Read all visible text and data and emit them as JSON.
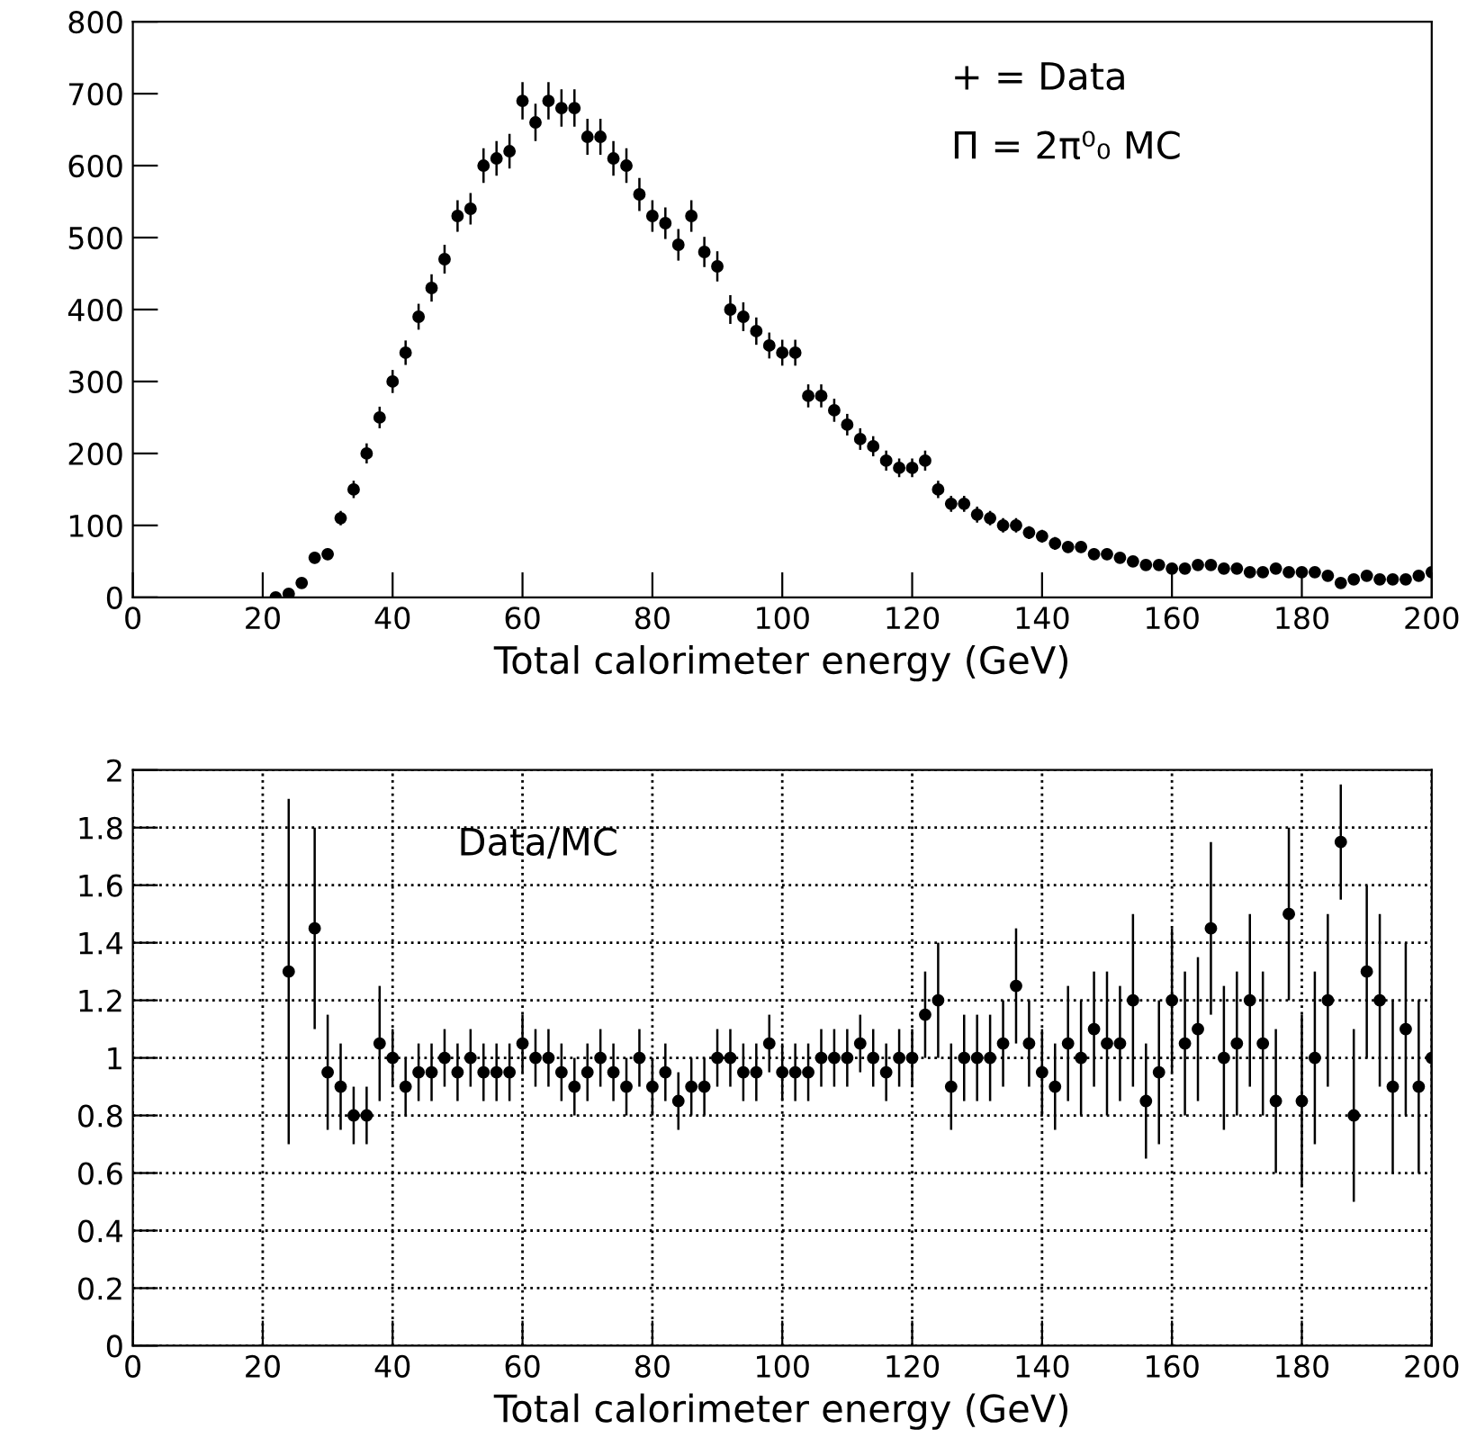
{
  "chart_data": [
    {
      "type": "scatter",
      "xlabel": "Total calorimeter energy (GeV)",
      "annotations": [
        "+ = Data",
        "Π = 2π⁰₀ MC"
      ],
      "marker": "circle",
      "grid": false,
      "color": "#000000",
      "x": [
        22,
        24,
        26,
        28,
        30,
        32,
        34,
        36,
        38,
        40,
        42,
        44,
        46,
        48,
        50,
        52,
        54,
        56,
        58,
        60,
        62,
        64,
        66,
        68,
        70,
        72,
        74,
        76,
        78,
        80,
        82,
        84,
        86,
        88,
        90,
        92,
        94,
        96,
        98,
        100,
        102,
        104,
        106,
        108,
        110,
        112,
        114,
        116,
        118,
        120,
        122,
        124,
        126,
        128,
        130,
        132,
        134,
        136,
        138,
        140,
        142,
        144,
        146,
        148,
        150,
        152,
        154,
        156,
        158,
        160,
        162,
        164,
        166,
        168,
        170,
        172,
        174,
        176,
        178,
        180,
        182,
        184,
        186,
        188,
        190,
        192,
        194,
        196,
        198,
        200
      ],
      "values": [
        0,
        5,
        20,
        55,
        60,
        110,
        150,
        200,
        250,
        300,
        340,
        390,
        430,
        470,
        530,
        540,
        600,
        610,
        620,
        690,
        660,
        690,
        680,
        680,
        640,
        640,
        610,
        600,
        560,
        530,
        520,
        490,
        530,
        480,
        460,
        400,
        390,
        370,
        350,
        340,
        340,
        280,
        280,
        260,
        240,
        220,
        210,
        190,
        180,
        180,
        190,
        150,
        130,
        130,
        115,
        110,
        100,
        100,
        90,
        85,
        75,
        70,
        70,
        60,
        60,
        55,
        50,
        45,
        45,
        40,
        40,
        45,
        45,
        40,
        40,
        35,
        35,
        40,
        35,
        35,
        35,
        30,
        20,
        25,
        30,
        25,
        25,
        25,
        30,
        35
      ],
      "errors": [
        5,
        5,
        5,
        8,
        8,
        10,
        12,
        14,
        15,
        16,
        17,
        18,
        19,
        20,
        22,
        22,
        24,
        24,
        24,
        26,
        26,
        26,
        26,
        26,
        25,
        25,
        24,
        24,
        23,
        22,
        22,
        22,
        22,
        21,
        21,
        20,
        20,
        19,
        18,
        18,
        18,
        16,
        16,
        16,
        15,
        15,
        14,
        14,
        13,
        13,
        14,
        12,
        11,
        11,
        11,
        10,
        10,
        10,
        9,
        9,
        9,
        8,
        8,
        8,
        8,
        7,
        7,
        7,
        7,
        6,
        6,
        7,
        7,
        6,
        6,
        6,
        6,
        6,
        6,
        6,
        6,
        5,
        5,
        5,
        5,
        5,
        5,
        5,
        5,
        6
      ],
      "xlim": [
        0,
        200
      ],
      "xticks": [
        0,
        20,
        40,
        60,
        80,
        100,
        120,
        140,
        160,
        180,
        200
      ],
      "ylim": [
        0,
        800
      ],
      "yticks": [
        0,
        100,
        200,
        300,
        400,
        500,
        600,
        700,
        800
      ]
    },
    {
      "type": "scatter",
      "xlabel": "Total calorimeter energy (GeV)",
      "annotations": [
        "Data/MC"
      ],
      "marker": "circle",
      "grid": true,
      "color": "#000000",
      "x": [
        24,
        28,
        30,
        32,
        34,
        36,
        38,
        40,
        42,
        44,
        46,
        48,
        50,
        52,
        54,
        56,
        58,
        60,
        62,
        64,
        66,
        68,
        70,
        72,
        74,
        76,
        78,
        80,
        82,
        84,
        86,
        88,
        90,
        92,
        94,
        96,
        98,
        100,
        102,
        104,
        106,
        108,
        110,
        112,
        114,
        116,
        118,
        120,
        122,
        124,
        126,
        128,
        130,
        132,
        134,
        136,
        138,
        140,
        142,
        144,
        146,
        148,
        150,
        152,
        154,
        156,
        158,
        160,
        162,
        164,
        166,
        168,
        170,
        172,
        174,
        176,
        178,
        180,
        182,
        184,
        186,
        188,
        190,
        192,
        194,
        196,
        198,
        200
      ],
      "values": [
        1.3,
        1.45,
        0.95,
        0.9,
        0.8,
        0.8,
        1.05,
        1.0,
        0.9,
        0.95,
        0.95,
        1.0,
        0.95,
        1.0,
        0.95,
        0.95,
        0.95,
        1.05,
        1.0,
        1.0,
        0.95,
        0.9,
        0.95,
        1.0,
        0.95,
        0.9,
        1.0,
        0.9,
        0.95,
        0.85,
        0.9,
        0.9,
        1.0,
        1.0,
        0.95,
        0.95,
        1.05,
        0.95,
        0.95,
        0.95,
        1.0,
        1.0,
        1.0,
        1.05,
        1.0,
        0.95,
        1.0,
        1.0,
        1.15,
        1.2,
        0.9,
        1.0,
        1.0,
        1.0,
        1.05,
        1.25,
        1.05,
        0.95,
        0.9,
        1.05,
        1.0,
        1.1,
        1.05,
        1.05,
        1.2,
        0.85,
        0.95,
        1.2,
        1.05,
        1.1,
        1.45,
        1.0,
        1.05,
        1.2,
        1.05,
        0.85,
        1.5,
        0.85,
        1.0,
        1.2,
        1.75,
        0.8,
        1.3,
        1.2,
        0.9,
        1.1,
        0.9,
        1.0
      ],
      "errors": [
        0.6,
        0.35,
        0.2,
        0.15,
        0.1,
        0.1,
        0.2,
        0.1,
        0.1,
        0.1,
        0.1,
        0.1,
        0.1,
        0.1,
        0.1,
        0.1,
        0.1,
        0.1,
        0.1,
        0.1,
        0.1,
        0.1,
        0.1,
        0.1,
        0.1,
        0.1,
        0.1,
        0.1,
        0.1,
        0.1,
        0.1,
        0.1,
        0.1,
        0.1,
        0.1,
        0.1,
        0.1,
        0.1,
        0.1,
        0.1,
        0.1,
        0.1,
        0.1,
        0.1,
        0.1,
        0.1,
        0.1,
        0.1,
        0.15,
        0.2,
        0.15,
        0.15,
        0.15,
        0.15,
        0.15,
        0.2,
        0.15,
        0.15,
        0.15,
        0.2,
        0.2,
        0.2,
        0.25,
        0.2,
        0.3,
        0.2,
        0.25,
        0.25,
        0.25,
        0.25,
        0.3,
        0.25,
        0.25,
        0.3,
        0.25,
        0.25,
        0.3,
        0.3,
        0.3,
        0.3,
        0.2,
        0.3,
        0.3,
        0.3,
        0.3,
        0.3,
        0.3,
        0.25
      ],
      "xlim": [
        0,
        200
      ],
      "xticks": [
        0,
        20,
        40,
        60,
        80,
        100,
        120,
        140,
        160,
        180,
        200
      ],
      "ylim": [
        0,
        2
      ],
      "yticks": [
        0,
        0.2,
        0.4,
        0.6,
        0.8,
        1,
        1.2,
        1.4,
        1.6,
        1.8,
        2
      ]
    }
  ]
}
